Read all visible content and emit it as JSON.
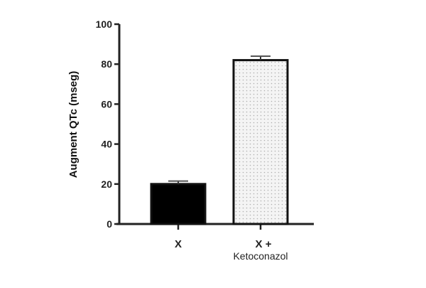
{
  "chart_data": {
    "type": "bar",
    "categories": [
      "X",
      "X + Ketoconazol"
    ],
    "category_lines": [
      [
        "X"
      ],
      [
        "X +",
        "Ketoconazol"
      ]
    ],
    "values": [
      20,
      82
    ],
    "errors": [
      1.5,
      2
    ],
    "ylabel": "Augment QTc (mseg)",
    "xlabel": "",
    "ylim": [
      0,
      100
    ],
    "yticks": [
      0,
      20,
      40,
      60,
      80,
      100
    ],
    "bar_fills": [
      "#000000",
      "#e8e8e8"
    ],
    "bar_patterns": [
      "solid",
      "dotted"
    ],
    "grid": false
  }
}
